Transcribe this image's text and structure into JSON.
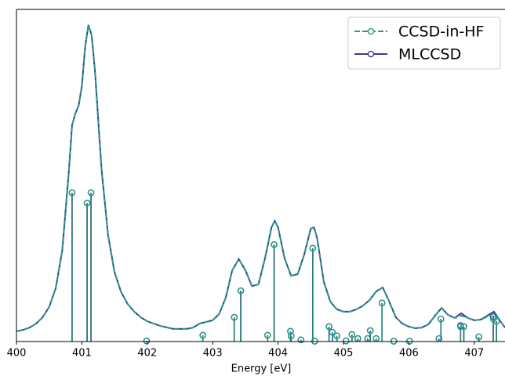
{
  "chart_data": {
    "type": "stem",
    "xlabel": "Energy [eV]",
    "xlim": [
      400,
      407.47
    ],
    "xticks": [
      400,
      401,
      402,
      403,
      404,
      405,
      406,
      407
    ],
    "ylim": [
      0,
      1
    ],
    "grid": false,
    "legend": "upper right",
    "series": [
      {
        "name": "CCSD-in-HF",
        "color": "#2a9a8c",
        "linestyle": "dashed",
        "stems": {
          "x": [
            400.85,
            401.08,
            401.14,
            401.99,
            402.85,
            403.33,
            403.43,
            403.84,
            403.94,
            404.19,
            404.2,
            404.35,
            404.53,
            404.56,
            404.78,
            404.83,
            404.9,
            405.04,
            405.13,
            405.22,
            405.37,
            405.41,
            405.5,
            405.59,
            405.77,
            406.01,
            406.46,
            406.49,
            406.79,
            406.84,
            407.07,
            407.29,
            407.34
          ],
          "values": [
            0.448,
            0.417,
            0.448,
            0.002,
            0.019,
            0.073,
            0.153,
            0.019,
            0.292,
            0.031,
            0.017,
            0.005,
            0.281,
            0.001,
            0.045,
            0.028,
            0.017,
            0.002,
            0.021,
            0.009,
            0.009,
            0.033,
            0.009,
            0.116,
            0.001,
            0.001,
            0.009,
            0.068,
            0.045,
            0.045,
            0.014,
            0.068,
            0.061
          ]
        },
        "curve": {
          "x": [
            400.0,
            400.1,
            400.2,
            400.3,
            400.4,
            400.5,
            400.6,
            400.7,
            400.8,
            400.85,
            400.9,
            400.95,
            401.0,
            401.05,
            401.1,
            401.15,
            401.2,
            401.3,
            401.4,
            401.5,
            401.6,
            401.7,
            401.8,
            401.9,
            402.0,
            402.2,
            402.4,
            402.6,
            402.7,
            402.8,
            402.9,
            403.0,
            403.1,
            403.2,
            403.3,
            403.4,
            403.5,
            403.6,
            403.7,
            403.8,
            403.9,
            403.95,
            404.0,
            404.1,
            404.2,
            404.3,
            404.4,
            404.5,
            404.55,
            404.6,
            404.7,
            404.8,
            404.9,
            405.0,
            405.1,
            405.2,
            405.3,
            405.4,
            405.5,
            405.6,
            405.7,
            405.8,
            405.9,
            406.0,
            406.1,
            406.2,
            406.3,
            406.4,
            406.5,
            406.6,
            406.7,
            406.8,
            406.9,
            407.0,
            407.1,
            407.2,
            407.3,
            407.4,
            407.47
          ],
          "values": [
            0.031,
            0.035,
            0.042,
            0.054,
            0.073,
            0.104,
            0.16,
            0.274,
            0.509,
            0.651,
            0.686,
            0.71,
            0.769,
            0.887,
            0.953,
            0.922,
            0.816,
            0.521,
            0.321,
            0.208,
            0.149,
            0.113,
            0.09,
            0.073,
            0.061,
            0.047,
            0.038,
            0.038,
            0.042,
            0.054,
            0.059,
            0.064,
            0.083,
            0.132,
            0.215,
            0.248,
            0.215,
            0.167,
            0.172,
            0.25,
            0.344,
            0.363,
            0.344,
            0.25,
            0.198,
            0.203,
            0.262,
            0.34,
            0.344,
            0.309,
            0.179,
            0.12,
            0.097,
            0.09,
            0.09,
            0.097,
            0.108,
            0.125,
            0.151,
            0.163,
            0.12,
            0.073,
            0.054,
            0.045,
            0.04,
            0.042,
            0.052,
            0.078,
            0.101,
            0.08,
            0.071,
            0.078,
            0.071,
            0.064,
            0.066,
            0.075,
            0.085,
            0.061,
            0.042
          ]
        }
      },
      {
        "name": "MLCCSD",
        "color": "#3b3b8f",
        "linestyle": "solid",
        "stems": {
          "x": [
            400.85,
            401.08,
            401.14,
            401.99,
            402.85,
            403.33,
            403.43,
            403.84,
            403.94,
            404.19,
            404.2,
            404.35,
            404.53,
            404.56,
            404.78,
            404.83,
            404.9,
            405.04,
            405.13,
            405.22,
            405.37,
            405.41,
            405.5,
            405.59,
            405.77,
            406.01,
            406.46,
            406.49,
            406.79,
            406.84,
            407.07,
            407.29,
            407.34
          ],
          "values": [
            0.448,
            0.417,
            0.448,
            0.002,
            0.019,
            0.073,
            0.153,
            0.019,
            0.292,
            0.031,
            0.017,
            0.005,
            0.281,
            0.001,
            0.045,
            0.028,
            0.017,
            0.002,
            0.021,
            0.009,
            0.009,
            0.033,
            0.009,
            0.116,
            0.001,
            0.001,
            0.009,
            0.068,
            0.048,
            0.045,
            0.014,
            0.075,
            0.061
          ]
        },
        "curve": {
          "x": [
            400.0,
            400.1,
            400.2,
            400.3,
            400.4,
            400.5,
            400.6,
            400.7,
            400.8,
            400.85,
            400.9,
            400.95,
            401.0,
            401.05,
            401.1,
            401.15,
            401.2,
            401.3,
            401.4,
            401.5,
            401.6,
            401.7,
            401.8,
            401.9,
            402.0,
            402.2,
            402.4,
            402.6,
            402.7,
            402.8,
            402.9,
            403.0,
            403.1,
            403.2,
            403.3,
            403.4,
            403.5,
            403.6,
            403.7,
            403.8,
            403.9,
            403.95,
            404.0,
            404.1,
            404.2,
            404.3,
            404.4,
            404.5,
            404.55,
            404.6,
            404.7,
            404.8,
            404.9,
            405.0,
            405.1,
            405.2,
            405.3,
            405.4,
            405.5,
            405.6,
            405.7,
            405.8,
            405.9,
            406.0,
            406.1,
            406.2,
            406.3,
            406.4,
            406.5,
            406.6,
            406.7,
            406.8,
            406.9,
            407.0,
            407.1,
            407.2,
            407.3,
            407.4,
            407.47
          ],
          "values": [
            0.031,
            0.035,
            0.042,
            0.054,
            0.073,
            0.104,
            0.16,
            0.274,
            0.509,
            0.651,
            0.686,
            0.71,
            0.769,
            0.887,
            0.953,
            0.922,
            0.816,
            0.521,
            0.321,
            0.208,
            0.149,
            0.113,
            0.09,
            0.073,
            0.061,
            0.047,
            0.038,
            0.038,
            0.042,
            0.054,
            0.059,
            0.064,
            0.083,
            0.132,
            0.215,
            0.248,
            0.215,
            0.167,
            0.172,
            0.25,
            0.344,
            0.363,
            0.344,
            0.25,
            0.198,
            0.203,
            0.262,
            0.34,
            0.344,
            0.309,
            0.179,
            0.12,
            0.097,
            0.09,
            0.09,
            0.097,
            0.108,
            0.125,
            0.151,
            0.163,
            0.12,
            0.073,
            0.054,
            0.045,
            0.04,
            0.042,
            0.052,
            0.078,
            0.101,
            0.08,
            0.071,
            0.085,
            0.071,
            0.064,
            0.066,
            0.078,
            0.09,
            0.061,
            0.042
          ]
        }
      }
    ]
  }
}
